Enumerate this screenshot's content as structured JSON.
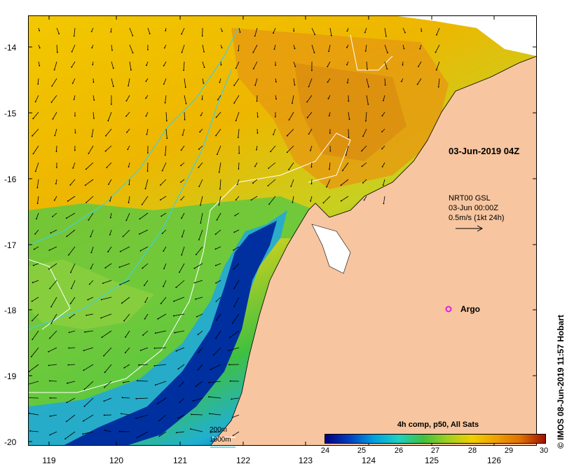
{
  "map": {
    "timestamp": "03-Jun-2019 04Z",
    "current": {
      "source": "NRT00 GSL",
      "time": "03-Jun 00:00Z",
      "scale": "0.5m/s (1kt 24h)"
    },
    "argo_label": "Argo",
    "depth_legend": [
      "200m",
      "1000m"
    ],
    "colorbar": {
      "title": "4h comp, p50, All Sats",
      "ticks": [
        "24",
        "25",
        "26",
        "27",
        "28",
        "29",
        "30"
      ],
      "colors": [
        "#000080",
        "#0040c0",
        "#00a0e0",
        "#20d0c0",
        "#40c040",
        "#a0d020",
        "#f0d000",
        "#f0a000",
        "#e07000",
        "#a01000"
      ]
    },
    "lat_labels": [
      "-14",
      "-15",
      "-16",
      "-17",
      "-18",
      "-19",
      "-20"
    ],
    "lon_labels": [
      "119",
      "120",
      "121",
      "122",
      "123",
      "124",
      "125",
      "126"
    ],
    "credit": "© IMOS 08-Jun-2019 11:57 Hobart",
    "colors": {
      "land": "#f7c59f",
      "isobath_200": "#ffffff",
      "isobath_1000": "#40d0e0",
      "argo": "#e020e0"
    }
  }
}
